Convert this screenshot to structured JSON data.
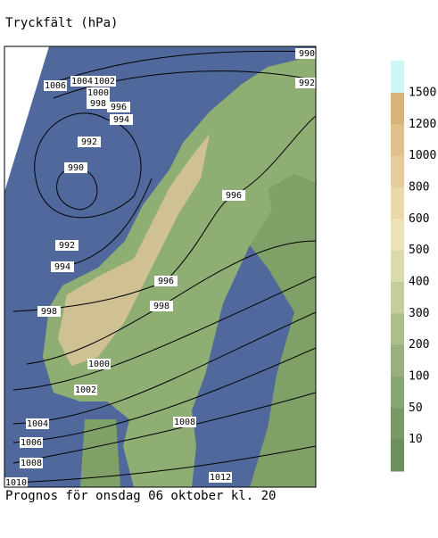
{
  "header": {
    "title": "Tryckfält (hPa)"
  },
  "footer": {
    "text": "Prognos för onsdag 06 oktober kl. 20"
  },
  "legend": {
    "levels": [
      1500,
      1200,
      1000,
      800,
      600,
      500,
      400,
      300,
      200,
      100,
      50,
      10
    ]
  },
  "isobar_labels": [
    "1006",
    "1004",
    "1002",
    "1000",
    "998",
    "996",
    "994",
    "992",
    "990",
    "992",
    "994",
    "996",
    "998",
    "998",
    "996",
    "1000",
    "1002",
    "1004",
    "1006",
    "1008",
    "1008",
    "1012",
    "1010",
    "990",
    "992"
  ]
}
